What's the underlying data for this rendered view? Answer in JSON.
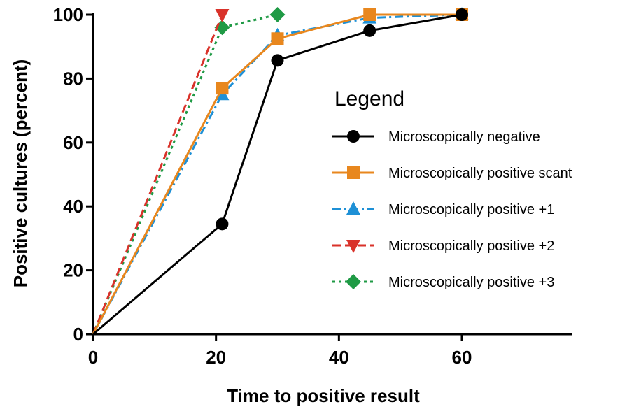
{
  "chart_data": {
    "type": "line",
    "xlabel": "Time to positive result",
    "ylabel": "Positive cultures (percent)",
    "xlim": [
      0,
      65
    ],
    "ylim": [
      0,
      100
    ],
    "xticks": [
      "0",
      "20",
      "40",
      "60"
    ],
    "yticks": [
      "0",
      "20",
      "40",
      "60",
      "80",
      "100"
    ],
    "grid": false,
    "legend": {
      "title": "Legend",
      "placement": "center-right"
    },
    "series": [
      {
        "name": "Microscopically negative",
        "color": "#000000",
        "marker": "circle",
        "dash": "solid",
        "points": [
          [
            0,
            0
          ],
          [
            21,
            34.5
          ],
          [
            30,
            85.7
          ],
          [
            45,
            95
          ],
          [
            60,
            100
          ]
        ]
      },
      {
        "name": "Microscopically positive scant",
        "color": "#e8871e",
        "marker": "square",
        "dash": "solid",
        "points": [
          [
            0,
            0
          ],
          [
            21,
            77
          ],
          [
            30,
            92.5
          ],
          [
            45,
            100
          ],
          [
            60,
            100
          ]
        ]
      },
      {
        "name": "Microscopically positive +1",
        "color": "#1e90d6",
        "marker": "triangle-up",
        "dash": "dashdot",
        "points": [
          [
            0,
            0
          ],
          [
            21,
            75
          ],
          [
            30,
            93.5
          ],
          [
            45,
            99
          ],
          [
            60,
            100
          ]
        ]
      },
      {
        "name": "Microscopically positive +2",
        "color": "#d9322a",
        "marker": "triangle-down",
        "dash": "dashed",
        "points": [
          [
            0,
            0
          ],
          [
            21,
            100
          ]
        ]
      },
      {
        "name": "Microscopically positive +3",
        "color": "#1f9a45",
        "marker": "diamond",
        "dash": "dotted",
        "points": [
          [
            0,
            0
          ],
          [
            21,
            96
          ],
          [
            30,
            100
          ]
        ]
      }
    ]
  }
}
